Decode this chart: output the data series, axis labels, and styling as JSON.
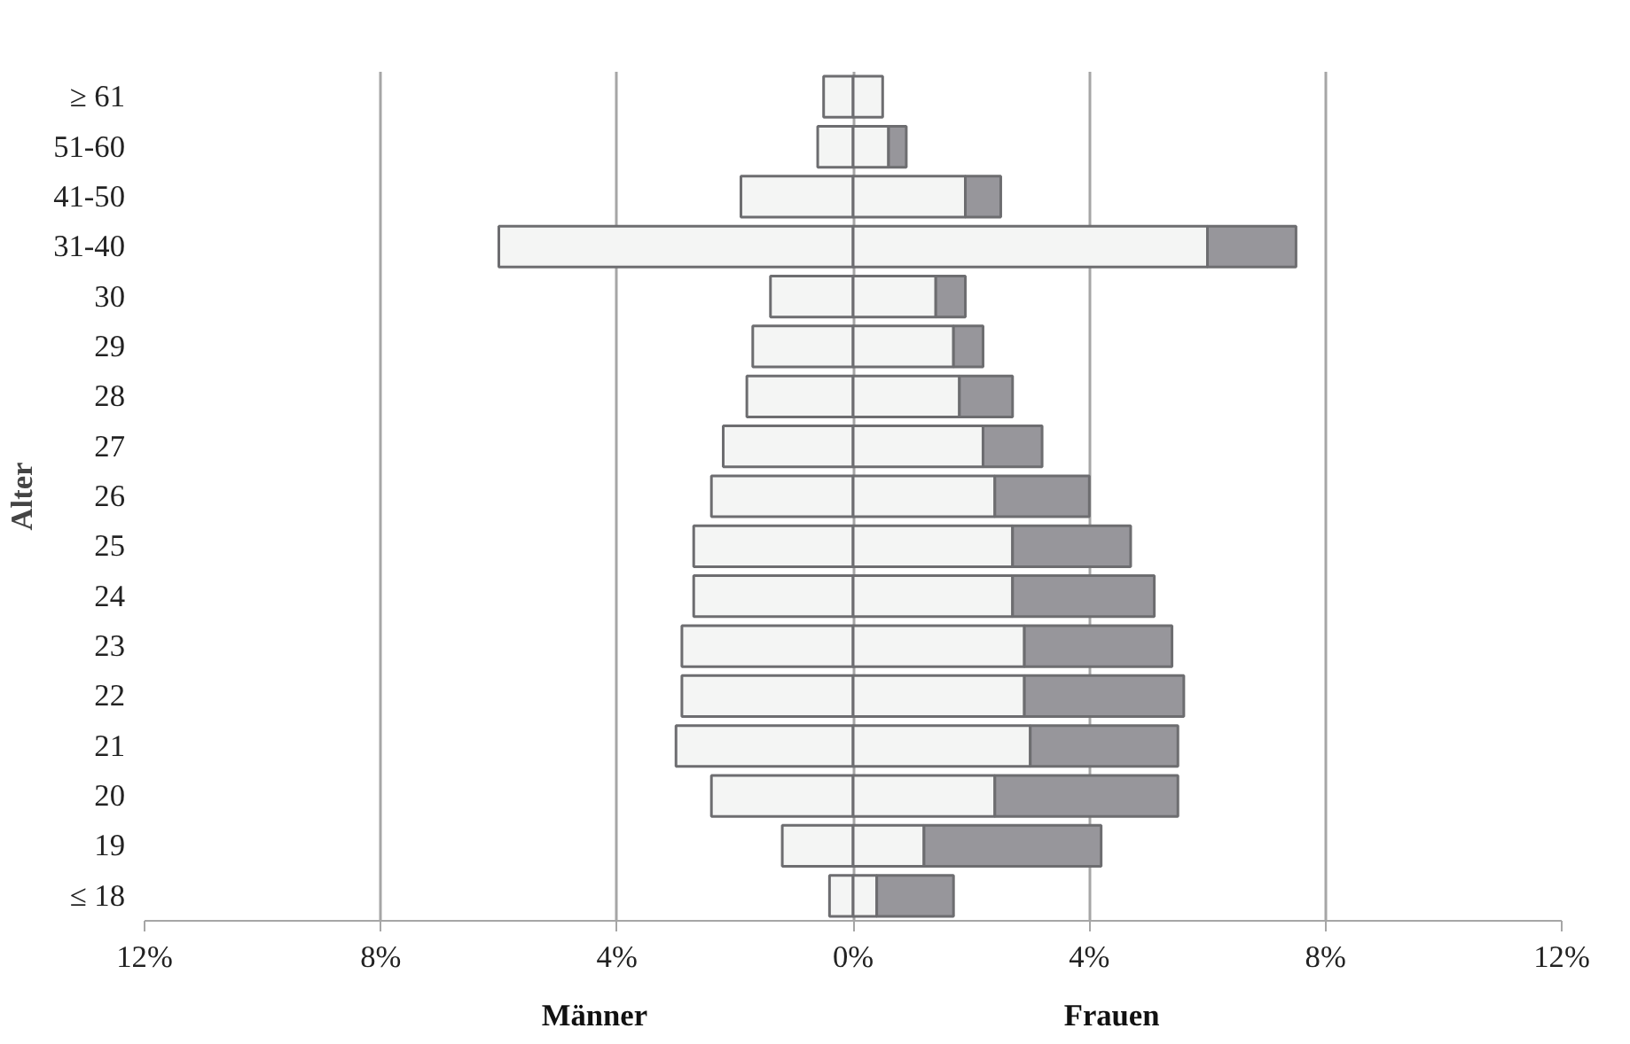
{
  "chart_data": {
    "type": "bar",
    "orientation": "horizontal",
    "stacked": true,
    "categories": [
      "≥ 61",
      "51-60",
      "41-50",
      "31-40",
      "30",
      "29",
      "28",
      "27",
      "26",
      "25",
      "24",
      "23",
      "22",
      "21",
      "20",
      "19",
      "≤ 18"
    ],
    "series": [
      {
        "color": "#f4f5f4",
        "values": [
          -0.5,
          -0.6,
          -1.9,
          -6.0,
          -1.4,
          -1.7,
          -1.8,
          -2.2,
          -2.4,
          -2.7,
          -2.7,
          -2.9,
          -2.9,
          -3.0,
          -2.4,
          -1.2,
          -0.4
        ]
      },
      {
        "color": "#f4f5f4",
        "values": [
          0.5,
          0.6,
          1.9,
          6.0,
          1.4,
          1.7,
          1.8,
          2.2,
          2.4,
          2.7,
          2.7,
          2.9,
          2.9,
          3.0,
          2.4,
          1.2,
          0.4
        ]
      },
      {
        "color": "#97969b",
        "values": [
          null,
          0.3,
          0.6,
          1.5,
          0.5,
          0.5,
          0.9,
          1.0,
          1.6,
          2.0,
          2.4,
          2.5,
          2.7,
          2.5,
          3.1,
          3.0,
          1.3
        ]
      }
    ],
    "xlim": [
      -12,
      12
    ],
    "xticks": [
      {
        "value": -12,
        "label": "12%"
      },
      {
        "value": -8,
        "label": "8%"
      },
      {
        "value": -4,
        "label": "4%"
      },
      {
        "value": 0,
        "label": "0%"
      },
      {
        "value": 4,
        "label": "4%"
      },
      {
        "value": 8,
        "label": "8%"
      },
      {
        "value": 12,
        "label": "12%"
      }
    ],
    "ylabel": "Alter",
    "annotations": [
      "Männer",
      "Frauen"
    ],
    "grid": "x"
  }
}
